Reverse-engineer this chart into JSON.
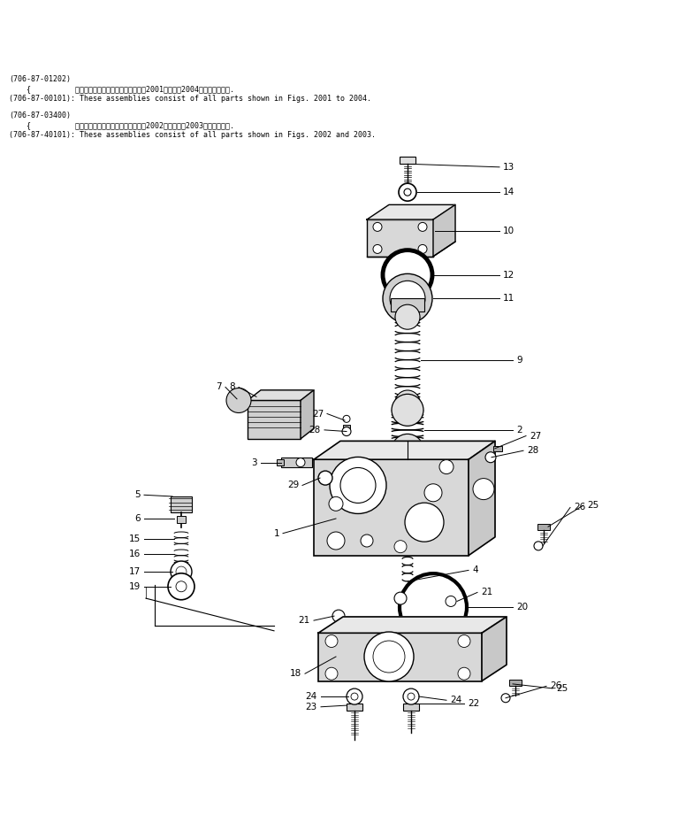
{
  "bg_color": "#ffffff",
  "header_lines": [
    "(706-87-01202)",
    "    {          これらのアセンブリの構成部品は第2001図から第2004図まで含みます.",
    "(706-87-00101): These assemblies consist of all parts shown in Figs. 2001 to 2004.",
    "",
    "(706-87-03400)",
    "    {          これらのアセンブリの構成部品は第2002図および第2003図を含みます.",
    "(706-87-40101): These assemblies consist of all parts shown in Figs. 2002 and 2003."
  ]
}
